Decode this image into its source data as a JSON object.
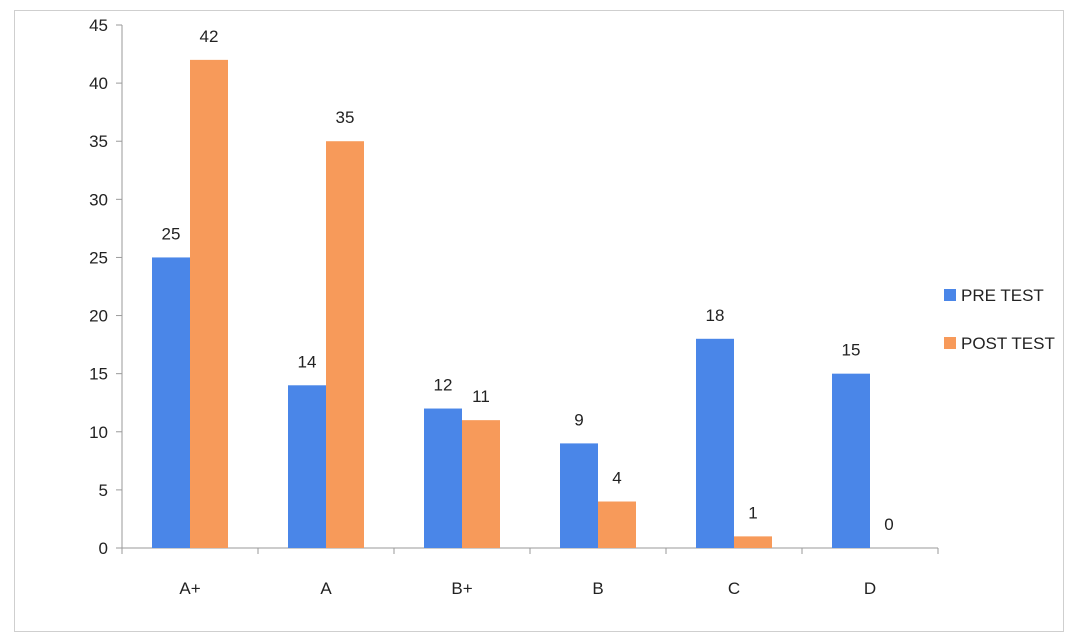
{
  "chart_data": {
    "type": "bar",
    "title": "",
    "xlabel": "",
    "ylabel": "",
    "categories": [
      "A+",
      "A",
      "B+",
      "B",
      "C",
      "D"
    ],
    "series": [
      {
        "name": "PRE TEST",
        "color": "#4a86e8",
        "values": [
          25,
          14,
          12,
          9,
          18,
          15
        ]
      },
      {
        "name": "POST TEST",
        "color": "#f79a5a",
        "values": [
          42,
          35,
          11,
          4,
          1,
          0
        ]
      }
    ],
    "ylim": [
      0,
      45
    ],
    "yticks": [
      0,
      5,
      10,
      15,
      20,
      25,
      30,
      35,
      40,
      45
    ],
    "grid": false,
    "legend_position": "right"
  }
}
